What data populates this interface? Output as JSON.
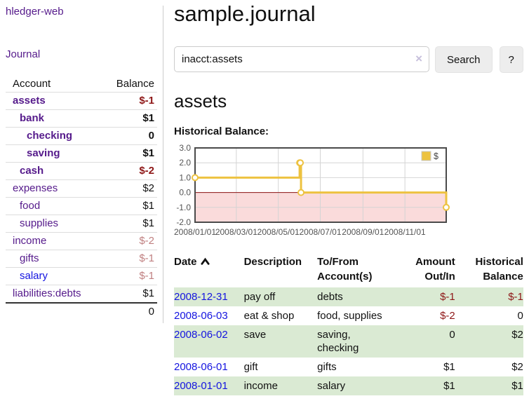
{
  "sidebar": {
    "brand": "hledger-web",
    "journal_link": "Journal",
    "accounts_table": {
      "headers": {
        "account": "Account",
        "balance": "Balance"
      },
      "rows": [
        {
          "name": "assets",
          "balance": "$-1"
        },
        {
          "name": "bank",
          "balance": "$1"
        },
        {
          "name": "checking",
          "balance": "0"
        },
        {
          "name": "saving",
          "balance": "$1"
        },
        {
          "name": "cash",
          "balance": "$-2"
        },
        {
          "name": "expenses",
          "balance": "$2"
        },
        {
          "name": "food",
          "balance": "$1"
        },
        {
          "name": "supplies",
          "balance": "$1"
        },
        {
          "name": "income",
          "balance": "$-2"
        },
        {
          "name": "gifts",
          "balance": "$-1"
        },
        {
          "name": "salary",
          "balance": "$-1"
        },
        {
          "name": "liabilities:debts",
          "balance": "$1"
        }
      ],
      "total": "0"
    }
  },
  "header": {
    "title": "sample.journal"
  },
  "search": {
    "value": "inacct:assets",
    "clear_icon": "×",
    "button_label": "Search",
    "help_label": "?"
  },
  "account_page": {
    "title": "assets",
    "chart_label": "Historical Balance:"
  },
  "chart_data": {
    "type": "line",
    "step": true,
    "title": "Historical Balance",
    "series": [
      {
        "name": "$",
        "color": "#edc240",
        "points": [
          [
            "2008-01-01",
            1
          ],
          [
            "2008-06-01",
            2
          ],
          [
            "2008-06-02",
            2
          ],
          [
            "2008-06-03",
            0
          ],
          [
            "2008-12-31",
            -1
          ]
        ]
      }
    ],
    "x_range": [
      "2008-01-01",
      "2008-12-31"
    ],
    "x_ticks": [
      "2008/01/01",
      "2008/03/01",
      "2008/05/01",
      "2008/07/01",
      "2008/09/01",
      "2008/11/01"
    ],
    "y_ticks": [
      3.0,
      2.0,
      1.0,
      0.0,
      -1.0,
      -2.0
    ],
    "ylim": [
      -2,
      3
    ],
    "grid": true,
    "legend_position": "top-right",
    "legend_label": "$",
    "negative_region_color": "#fadbdb",
    "zero_line_color": "#8f1414",
    "grid_color": "#d4d4d4",
    "border_color": "#4a4a4a",
    "tick_text_color": "#545454"
  },
  "register": {
    "headers": {
      "date": "Date",
      "description": "Description",
      "accounts": "To/From Account(s)",
      "amount": "Amount Out/In",
      "balance": "Historical Balance"
    },
    "rows": [
      {
        "date": "2008-12-31",
        "description": "pay off",
        "accounts": "debts",
        "amount": "$-1",
        "balance": "$-1"
      },
      {
        "date": "2008-06-03",
        "description": "eat & shop",
        "accounts": "food, supplies",
        "amount": "$-2",
        "balance": "0"
      },
      {
        "date": "2008-06-02",
        "description": "save",
        "accounts": "saving,\nchecking",
        "amount": "0",
        "balance": "$2"
      },
      {
        "date": "2008-06-01",
        "description": "gift",
        "accounts": "gifts",
        "amount": "$1",
        "balance": "$2"
      },
      {
        "date": "2008-01-01",
        "description": "income",
        "accounts": "salary",
        "amount": "$1",
        "balance": "$1"
      }
    ]
  },
  "colors": {
    "link_purple": "#551a8b",
    "link_blue": "#1414e0",
    "negative_amount": "#8e1717",
    "faded_negative": "#c08081",
    "row_stripe_green": "#daead3",
    "series_gold": "#edc240",
    "chart_negative_region": "#fadbdb"
  }
}
